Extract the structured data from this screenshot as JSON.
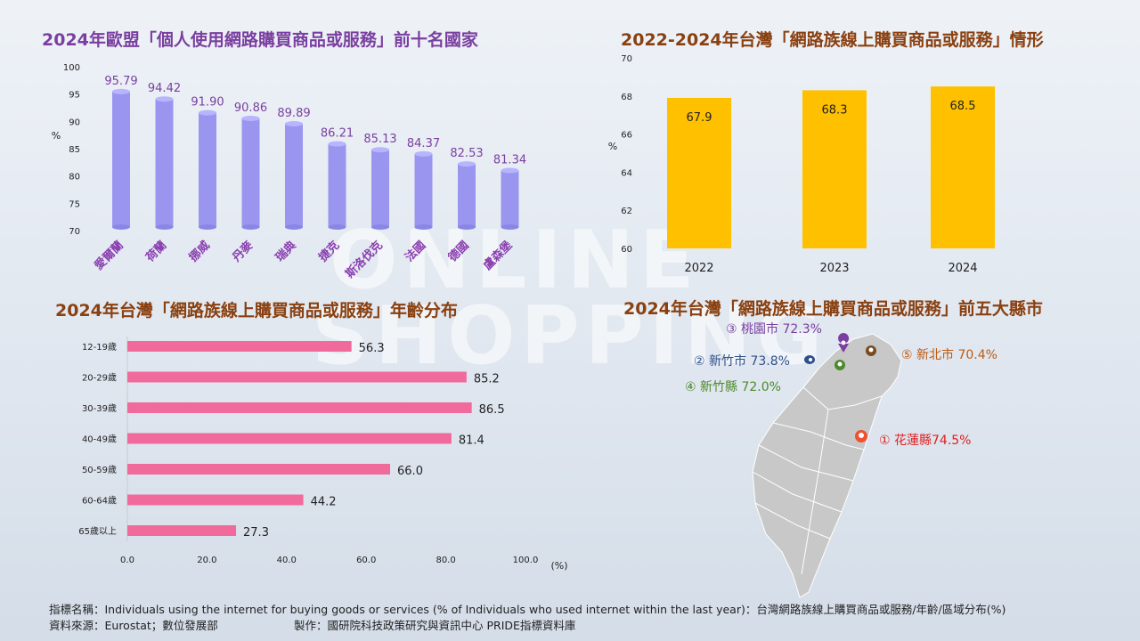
{
  "titles": {
    "eu": "2024年歐盟「個人使用網路購買商品或服務」前十名國家",
    "tw_trend": "2022-2024年台灣「網路族線上購買商品或服務」情形",
    "age": "2024年台灣「網路族線上購買商品或服務」年齡分布",
    "county": "2024年台灣「網路族線上購買商品或服務」前五大縣市"
  },
  "background_words": [
    "ONLINE",
    "SHOPPING"
  ],
  "colors": {
    "eu_bar": "#9a96f0",
    "tw_bar": "#ffc000",
    "age_bar": "#f06a9c",
    "eu_label": "#7a3fa0",
    "title_purple": "#7a3fa0",
    "title_brown": "#8a4010"
  },
  "chart_data": [
    {
      "type": "bar",
      "categories": [
        "愛爾蘭",
        "荷蘭",
        "挪威",
        "丹麥",
        "瑞典",
        "捷克",
        "斯洛伐克",
        "法國",
        "德國",
        "盧森堡"
      ],
      "values": [
        95.79,
        94.42,
        91.9,
        90.86,
        89.89,
        86.21,
        85.13,
        84.37,
        82.53,
        81.34
      ],
      "value_labels": [
        "95.79",
        "94.42",
        "91.90",
        "90.86",
        "89.89",
        "86.21",
        "85.13",
        "84.37",
        "82.53",
        "81.34"
      ],
      "ylabel": "%",
      "ylim": [
        70,
        100
      ],
      "yticks": [
        "70",
        "75",
        "80",
        "85",
        "90",
        "95",
        "100"
      ],
      "grid": false
    },
    {
      "type": "bar",
      "categories": [
        "2022",
        "2023",
        "2024"
      ],
      "values": [
        67.9,
        68.3,
        68.5
      ],
      "value_labels": [
        "67.9",
        "68.3",
        "68.5"
      ],
      "ylabel": "%",
      "ylim": [
        60,
        70
      ],
      "yticks": [
        "60",
        "62",
        "64",
        "66",
        "68",
        "70"
      ],
      "grid": false
    },
    {
      "type": "bar",
      "orientation": "horizontal",
      "categories": [
        "12-19歲",
        "20-29歲",
        "30-39歲",
        "40-49歲",
        "50-59歲",
        "60-64歲",
        "65歲以上"
      ],
      "values": [
        56.3,
        85.2,
        86.5,
        81.4,
        66.0,
        44.2,
        27.3
      ],
      "value_labels": [
        "56.3",
        "85.2",
        "86.5",
        "81.4",
        "66.0",
        "44.2",
        "27.3"
      ],
      "xlabel": "(%)",
      "xlim": [
        0,
        100
      ],
      "xticks": [
        "0.0",
        "20.0",
        "40.0",
        "60.0",
        "80.0",
        "100.0"
      ],
      "grid": false
    }
  ],
  "map": {
    "markers": [
      {
        "label": "③ 桃園市 72.3%",
        "color": "#7a3fa0",
        "value": 72.3
      },
      {
        "label": "② 新竹市 73.8%",
        "color": "#2e4f8a",
        "value": 73.8
      },
      {
        "label": "④ 新竹縣 72.0%",
        "color": "#4a8a2a",
        "value": 72.0
      },
      {
        "label": "⑤ 新北市 70.4%",
        "color": "#c05a10",
        "value": 70.4
      },
      {
        "label": "① 花蓮縣74.5%",
        "color": "#e02020",
        "value": 74.5
      }
    ]
  },
  "footer": {
    "line1": "指標名稱：Individuals using the internet for buying goods or services (% of Individuals who used internet within the last year)：台灣網路族線上購買商品或服務/年齡/區域分布(%)",
    "source": "資料來源：Eurostat；數位發展部",
    "maker": "製作：國研院科技政策研究與資訊中心  PRIDE指標資料庫"
  }
}
